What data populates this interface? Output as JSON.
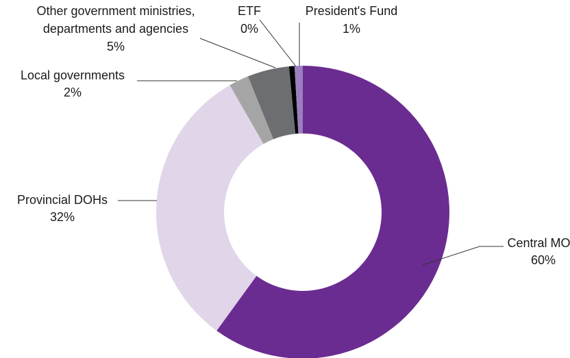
{
  "chart_data": {
    "type": "pie",
    "style": "donut",
    "title": "",
    "slices": [
      {
        "key": "central",
        "label": "Central MOH",
        "value": 60,
        "value_label": "60%",
        "color": "#6b2c91"
      },
      {
        "key": "provincial",
        "label": "Provincial DOHs",
        "value": 31.7,
        "value_label": "32%",
        "color": "#e0d5e9"
      },
      {
        "key": "local",
        "label": "Local governments",
        "value": 2.2,
        "value_label": "2%",
        "color": "#a5a5a6"
      },
      {
        "key": "other",
        "label": "Other government ministries, departments and agencies",
        "label_lines": [
          "Other government ministries,",
          "departments and agencies"
        ],
        "value": 4.6,
        "value_label": "5%",
        "color": "#6d6e71"
      },
      {
        "key": "etf",
        "label": "ETF",
        "value": 0.6,
        "value_label": "0%",
        "color": "#000000"
      },
      {
        "key": "president",
        "label": "President's Fund",
        "value": 0.9,
        "value_label": "1%",
        "color": "#9b7fc0"
      }
    ]
  }
}
